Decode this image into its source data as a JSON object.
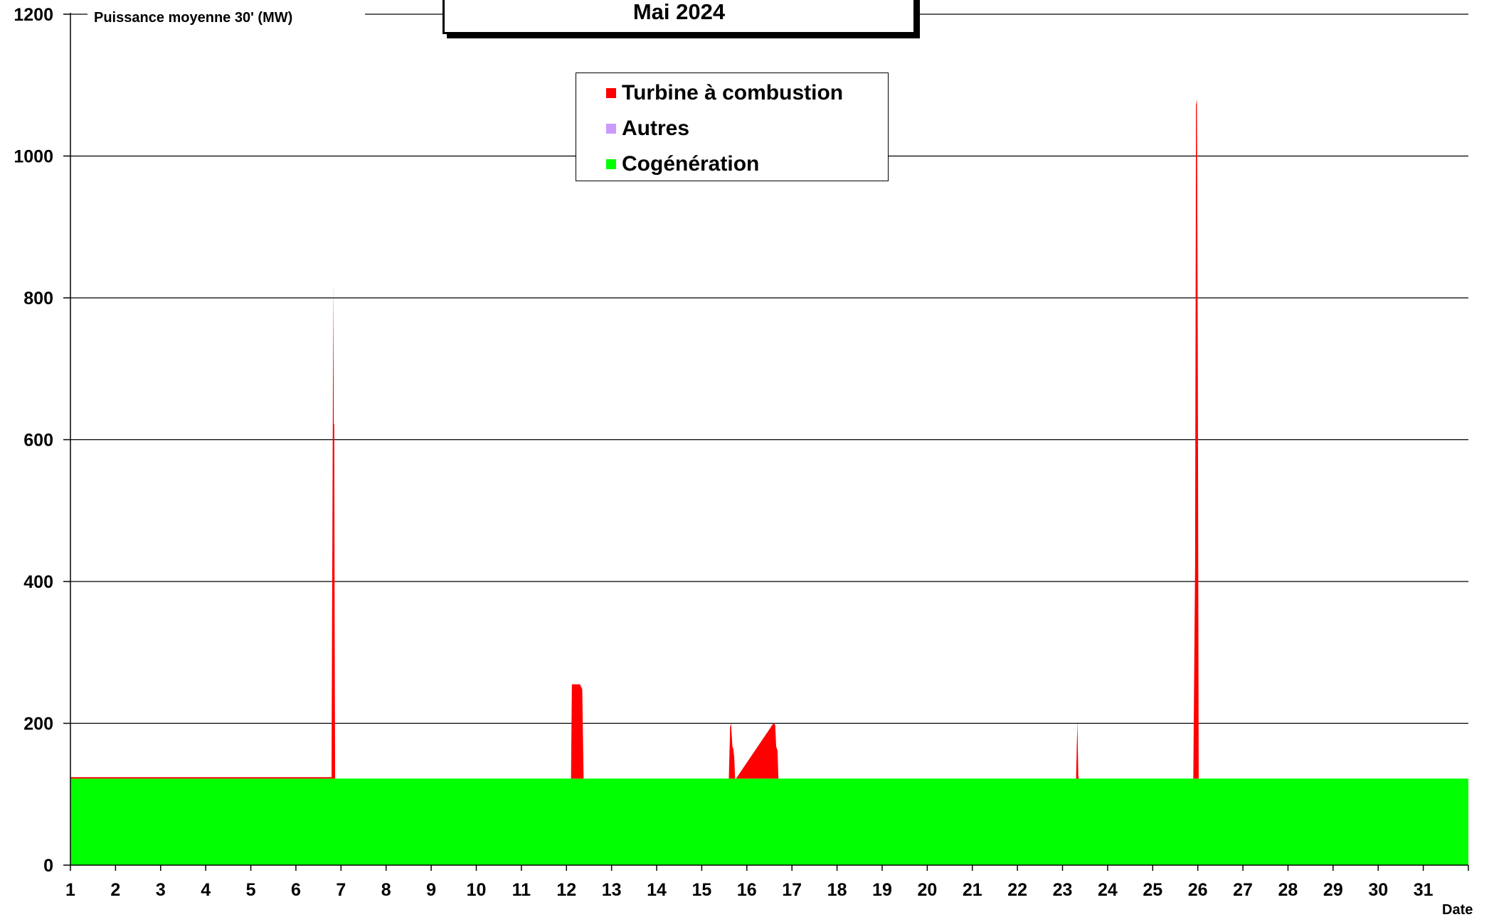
{
  "chart_data": {
    "type": "area",
    "title": "Mai 2024",
    "ylabel": "Puissance moyenne 30' (MW)",
    "xlabel": "Date",
    "ylim": [
      0,
      1200
    ],
    "xlim": [
      1,
      32
    ],
    "yticks": [
      0,
      200,
      400,
      600,
      800,
      1000,
      1200
    ],
    "xticks": [
      1,
      2,
      3,
      4,
      5,
      6,
      7,
      8,
      9,
      10,
      11,
      12,
      13,
      14,
      15,
      16,
      17,
      18,
      19,
      20,
      21,
      22,
      23,
      24,
      25,
      26,
      27,
      28,
      29,
      30,
      31
    ],
    "xtick_labels": [
      "1",
      "2",
      "3",
      "4",
      "5",
      "6",
      "7",
      "8",
      "9",
      "10",
      "11",
      "12",
      "13",
      "14",
      "15",
      "16",
      "17",
      "18",
      "19",
      "20",
      "21",
      "22",
      "23",
      "24",
      "25",
      "26",
      "27",
      "28",
      "29",
      "30",
      "31"
    ],
    "grid": "horizontal",
    "legend_position": "top-center",
    "stacked": true,
    "series": [
      {
        "name": "Cogénération",
        "color": "#00ff00",
        "x": [
          1,
          32
        ],
        "values": [
          122,
          122
        ]
      },
      {
        "name": "Autres",
        "color": "#cc99ff",
        "x": [
          1,
          32
        ],
        "values": [
          0,
          0
        ]
      },
      {
        "name": "Turbine à combustion",
        "color": "#ff0000",
        "x": [
          1,
          6.79,
          6.8,
          6.83,
          6.84,
          6.85,
          6.86,
          6.87,
          6.9,
          12.1,
          12.12,
          12.15,
          12.2,
          12.25,
          12.3,
          12.35,
          12.38,
          15.6,
          15.63,
          15.65,
          15.68,
          15.7,
          15.72,
          15.74,
          15.76,
          16.6,
          16.63,
          16.65,
          16.68,
          16.7,
          16.72,
          16.75,
          23.3,
          23.33,
          23.35,
          23.37,
          25.9,
          25.94,
          25.96,
          25.98,
          26.0,
          26.02,
          32
        ],
        "values": [
          2,
          2,
          200,
          700,
          500,
          500,
          200,
          0,
          0,
          0,
          133,
          133,
          133,
          133,
          133,
          126,
          0,
          0,
          74,
          77,
          45,
          42,
          30,
          0,
          0,
          79,
          75,
          45,
          40,
          0,
          0,
          0,
          0,
          82,
          2,
          0,
          0,
          300,
          950,
          958,
          600,
          0,
          0
        ]
      }
    ],
    "legend": [
      "Turbine à combustion",
      "Autres",
      "Cogénération"
    ]
  }
}
